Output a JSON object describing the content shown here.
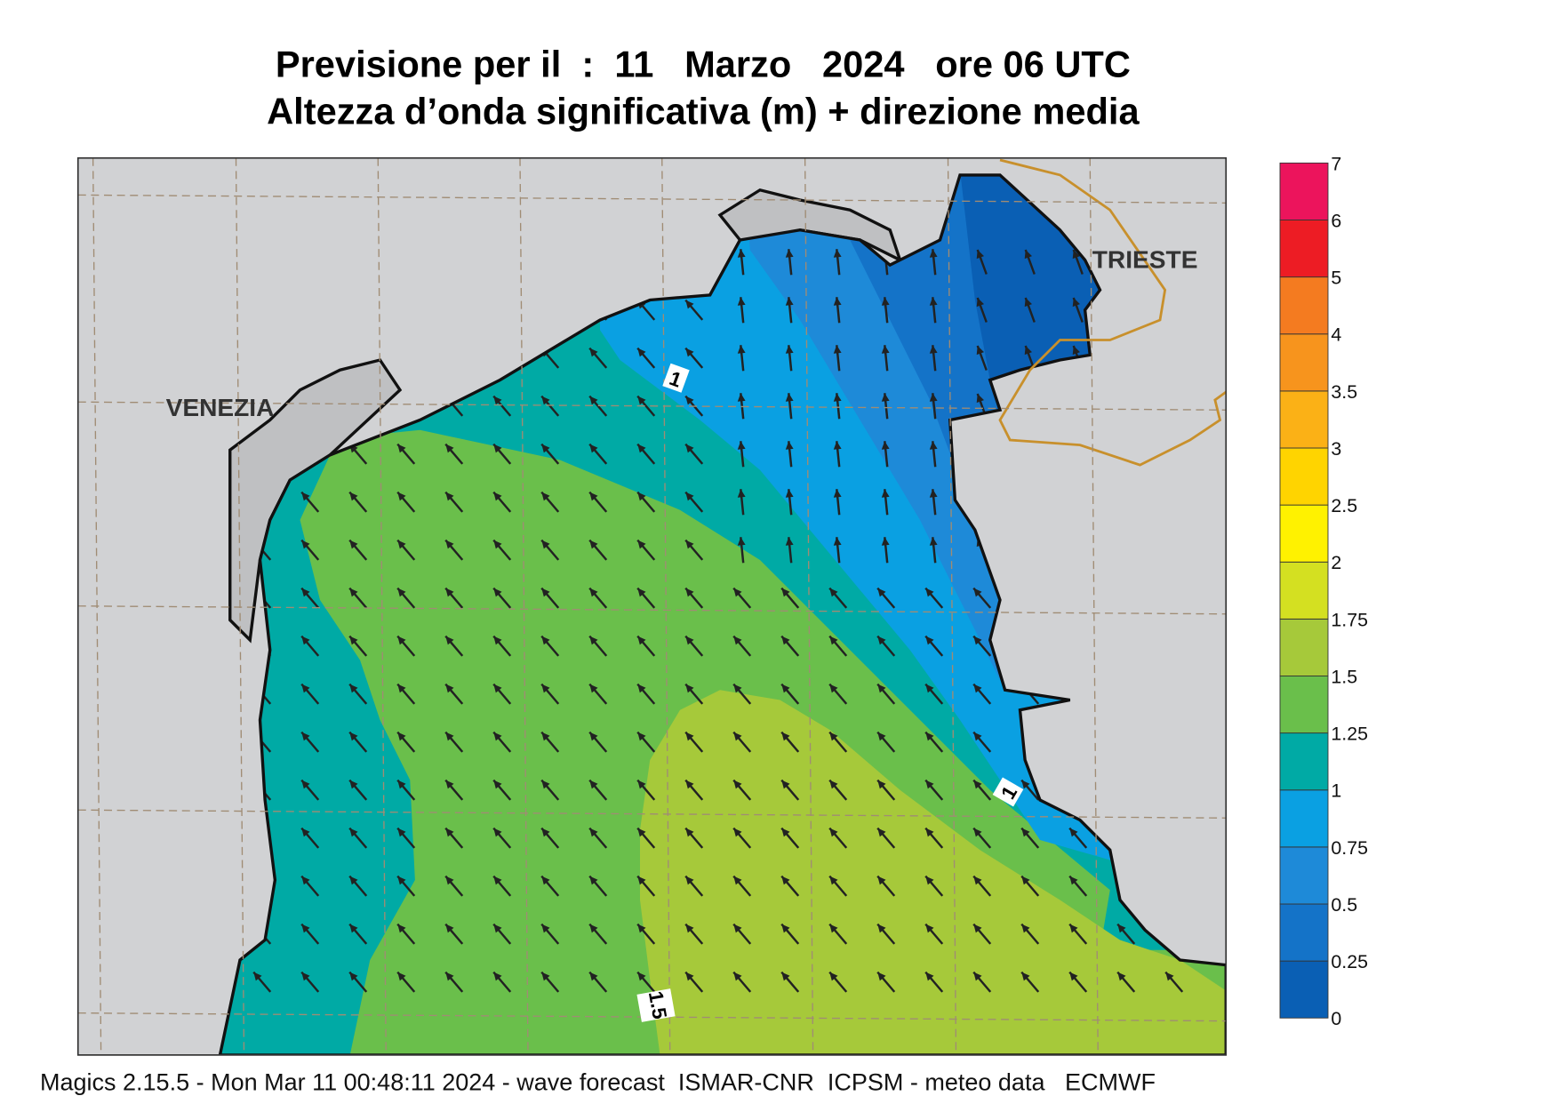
{
  "title": [
    "Previsione per il  :  11   Marzo   2024   ore 06 UTC",
    "Altezza d’onda significativa (m) + direzione media"
  ],
  "map_labels": {
    "venezia": "VENEZIA",
    "trieste": "TRIESTE"
  },
  "contour_labels": [
    "1",
    "1",
    "1.5"
  ],
  "legend": {
    "ticks": [
      0,
      0.25,
      0.5,
      0.75,
      1,
      1.25,
      1.5,
      1.75,
      2,
      2.5,
      3,
      3.5,
      4,
      5,
      6,
      7
    ],
    "colors": [
      "#0a5fb4",
      "#1473c8",
      "#1e8ad8",
      "#0aa0e2",
      "#00aaa5",
      "#6abf4b",
      "#a6c93a",
      "#d4e021",
      "#fff200",
      "#ffd400",
      "#fbb116",
      "#f7941d",
      "#f47b20",
      "#ed1c24",
      "#ec145c"
    ]
  },
  "footer": "Magics 2.15.5 - Mon Mar 11 00:48:11 2024 - wave forecast  ISMAR-CNR  ICPSM - meteo data   ECMWF"
}
